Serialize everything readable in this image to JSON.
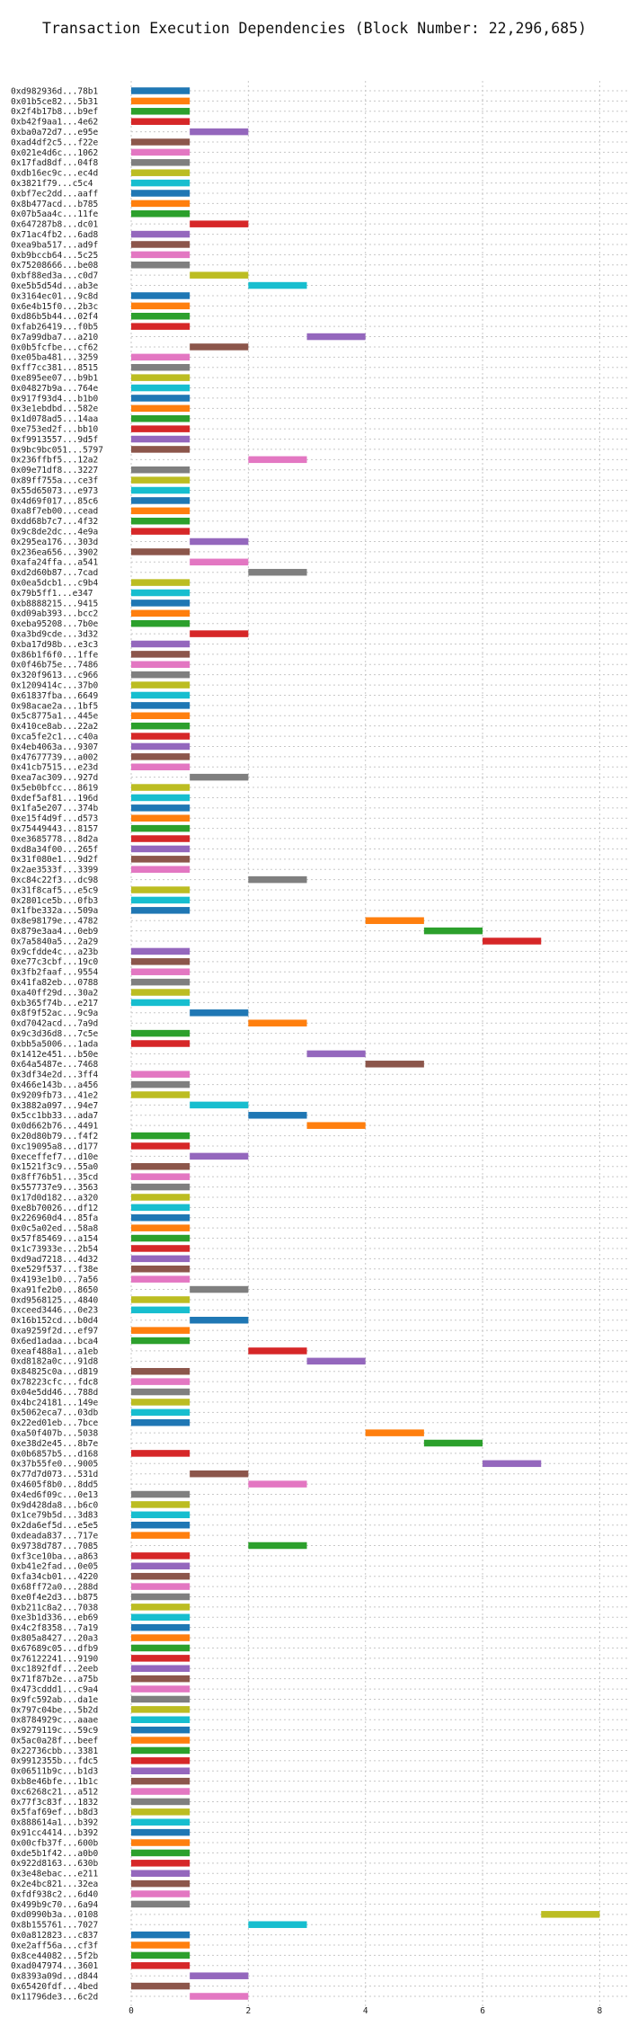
{
  "chart_data": {
    "type": "bar",
    "title": "Transaction Execution Dependencies (Block Number: 22,296,685)",
    "xlabel": "",
    "ylabel": "",
    "xlim": [
      0,
      8.5
    ],
    "xticks": [
      0,
      2,
      4,
      6,
      8
    ],
    "grid": true,
    "palette": [
      "#1f77b4",
      "#ff7f0e",
      "#2ca02c",
      "#d62728",
      "#9467bd",
      "#8c564b",
      "#e377c2",
      "#7f7f7f",
      "#bcbd22",
      "#17becf"
    ],
    "rows": [
      {
        "tx": "0xd982936d...78b1",
        "start": 0,
        "end": 1
      },
      {
        "tx": "0x01b5ce82...5b31",
        "start": 0,
        "end": 1
      },
      {
        "tx": "0x2f4b17b8...b9ef",
        "start": 0,
        "end": 1
      },
      {
        "tx": "0xb42f9aa1...4e62",
        "start": 0,
        "end": 1
      },
      {
        "tx": "0xba0a72d7...e95e",
        "start": 1,
        "end": 2
      },
      {
        "tx": "0xad4df2c5...f22e",
        "start": 0,
        "end": 1
      },
      {
        "tx": "0x021e4d6c...1062",
        "start": 0,
        "end": 1
      },
      {
        "tx": "0x17fad8df...04f8",
        "start": 0,
        "end": 1
      },
      {
        "tx": "0xdb16ec9c...ec4d",
        "start": 0,
        "end": 1
      },
      {
        "tx": "0x3821f79...c5c4",
        "start": 0,
        "end": 1
      },
      {
        "tx": "0xbf7ec2dd...aaff",
        "start": 0,
        "end": 1
      },
      {
        "tx": "0x8b477acd...b785",
        "start": 0,
        "end": 1
      },
      {
        "tx": "0x07b5aa4c...11fe",
        "start": 0,
        "end": 1
      },
      {
        "tx": "0x647287b8...dc01",
        "start": 1,
        "end": 2
      },
      {
        "tx": "0x71ac4fb2...6ad8",
        "start": 0,
        "end": 1
      },
      {
        "tx": "0xea9ba517...ad9f",
        "start": 0,
        "end": 1
      },
      {
        "tx": "0xb9bccb64...5c25",
        "start": 0,
        "end": 1
      },
      {
        "tx": "0x75208666...be08",
        "start": 0,
        "end": 1
      },
      {
        "tx": "0xbf88ed3a...c0d7",
        "start": 1,
        "end": 2
      },
      {
        "tx": "0xe5b5d54d...ab3e",
        "start": 2,
        "end": 3
      },
      {
        "tx": "0x3164ec01...9c8d",
        "start": 0,
        "end": 1
      },
      {
        "tx": "0x6e4b15f0...2b3c",
        "start": 0,
        "end": 1
      },
      {
        "tx": "0xd86b5b44...02f4",
        "start": 0,
        "end": 1
      },
      {
        "tx": "0xfab26419...f0b5",
        "start": 0,
        "end": 1
      },
      {
        "tx": "0x7a99dba7...a210",
        "start": 3,
        "end": 4
      },
      {
        "tx": "0x0b5fcfbe...cf62",
        "start": 1,
        "end": 2
      },
      {
        "tx": "0xe05ba481...3259",
        "start": 0,
        "end": 1
      },
      {
        "tx": "0xff7cc381...8515",
        "start": 0,
        "end": 1
      },
      {
        "tx": "0xe895ee07...b9b1",
        "start": 0,
        "end": 1
      },
      {
        "tx": "0x04827b9a...764e",
        "start": 0,
        "end": 1
      },
      {
        "tx": "0x917f93d4...b1b0",
        "start": 0,
        "end": 1
      },
      {
        "tx": "0x3e1ebdbd...582e",
        "start": 0,
        "end": 1
      },
      {
        "tx": "0x1d078ad5...14aa",
        "start": 0,
        "end": 1
      },
      {
        "tx": "0xe753ed2f...bb10",
        "start": 0,
        "end": 1
      },
      {
        "tx": "0xf9913557...9d5f",
        "start": 0,
        "end": 1
      },
      {
        "tx": "0x9bc9bc051...5797",
        "start": 0,
        "end": 1
      },
      {
        "tx": "0x236ffbf5...12a2",
        "start": 2,
        "end": 3
      },
      {
        "tx": "0x09e71df8...3227",
        "start": 0,
        "end": 1
      },
      {
        "tx": "0x89ff755a...ce3f",
        "start": 0,
        "end": 1
      },
      {
        "tx": "0x55d65073...e973",
        "start": 0,
        "end": 1
      },
      {
        "tx": "0x4d69f017...85c6",
        "start": 0,
        "end": 1
      },
      {
        "tx": "0xa8f7eb00...cead",
        "start": 0,
        "end": 1
      },
      {
        "tx": "0xdd68b7c7...4f32",
        "start": 0,
        "end": 1
      },
      {
        "tx": "0x9c8de2dc...4e9a",
        "start": 0,
        "end": 1
      },
      {
        "tx": "0x295ea176...303d",
        "start": 1,
        "end": 2
      },
      {
        "tx": "0x236ea656...3902",
        "start": 0,
        "end": 1
      },
      {
        "tx": "0xafa24ffa...a541",
        "start": 1,
        "end": 2
      },
      {
        "tx": "0xd2d60b87...7cad",
        "start": 2,
        "end": 3
      },
      {
        "tx": "0x0ea5dcb1...c9b4",
        "start": 0,
        "end": 1
      },
      {
        "tx": "0x79b5ff1...e347",
        "start": 0,
        "end": 1
      },
      {
        "tx": "0xb8888215...9415",
        "start": 0,
        "end": 1
      },
      {
        "tx": "0xd09ab393...bcc2",
        "start": 0,
        "end": 1
      },
      {
        "tx": "0xeba95208...7b0e",
        "start": 0,
        "end": 1
      },
      {
        "tx": "0xa3bd9cde...3d32",
        "start": 1,
        "end": 2
      },
      {
        "tx": "0xba17d98b...e3c3",
        "start": 0,
        "end": 1
      },
      {
        "tx": "0x86b1f6f0...1ffe",
        "start": 0,
        "end": 1
      },
      {
        "tx": "0x0f46b75e...7486",
        "start": 0,
        "end": 1
      },
      {
        "tx": "0x320f9613...c966",
        "start": 0,
        "end": 1
      },
      {
        "tx": "0x1209414c...37b0",
        "start": 0,
        "end": 1
      },
      {
        "tx": "0x61837fba...6649",
        "start": 0,
        "end": 1
      },
      {
        "tx": "0x98acae2a...1bf5",
        "start": 0,
        "end": 1
      },
      {
        "tx": "0x5c8775a1...445e",
        "start": 0,
        "end": 1
      },
      {
        "tx": "0x410ce8ab...22a2",
        "start": 0,
        "end": 1
      },
      {
        "tx": "0xca5fe2c1...c40a",
        "start": 0,
        "end": 1
      },
      {
        "tx": "0x4eb4063a...9307",
        "start": 0,
        "end": 1
      },
      {
        "tx": "0x47677739...a002",
        "start": 0,
        "end": 1
      },
      {
        "tx": "0x41cb7515...e23d",
        "start": 0,
        "end": 1
      },
      {
        "tx": "0xea7ac309...927d",
        "start": 1,
        "end": 2
      },
      {
        "tx": "0x5eb0bfcc...8619",
        "start": 0,
        "end": 1
      },
      {
        "tx": "0xdef5af81...196d",
        "start": 0,
        "end": 1
      },
      {
        "tx": "0x1fa5e207...374b",
        "start": 0,
        "end": 1
      },
      {
        "tx": "0xe15f4d9f...d573",
        "start": 0,
        "end": 1
      },
      {
        "tx": "0x75449443...8157",
        "start": 0,
        "end": 1
      },
      {
        "tx": "0xe3685778...8d2a",
        "start": 0,
        "end": 1
      },
      {
        "tx": "0xd8a34f00...265f",
        "start": 0,
        "end": 1
      },
      {
        "tx": "0x31f080e1...9d2f",
        "start": 0,
        "end": 1
      },
      {
        "tx": "0x2ae3533f...3399",
        "start": 0,
        "end": 1
      },
      {
        "tx": "0xc84c22f3...dc98",
        "start": 2,
        "end": 3
      },
      {
        "tx": "0x31f8caf5...e5c9",
        "start": 0,
        "end": 1
      },
      {
        "tx": "0x2801ce5b...0fb3",
        "start": 0,
        "end": 1
      },
      {
        "tx": "0x1fbe332a...509a",
        "start": 0,
        "end": 1
      },
      {
        "tx": "0x8e98179e...4782",
        "start": 4,
        "end": 5
      },
      {
        "tx": "0x879e3aa4...0eb9",
        "start": 5,
        "end": 6
      },
      {
        "tx": "0x7a5840a5...2a29",
        "start": 6,
        "end": 7
      },
      {
        "tx": "0x9cfdde4c...a23b",
        "start": 0,
        "end": 1
      },
      {
        "tx": "0xe77c3cbf...19c0",
        "start": 0,
        "end": 1
      },
      {
        "tx": "0x3fb2faaf...9554",
        "start": 0,
        "end": 1
      },
      {
        "tx": "0x41fa82eb...0788",
        "start": 0,
        "end": 1
      },
      {
        "tx": "0xa40ff29d...30a2",
        "start": 0,
        "end": 1
      },
      {
        "tx": "0xb365f74b...e217",
        "start": 0,
        "end": 1
      },
      {
        "tx": "0x8f9f52ac...9c9a",
        "start": 1,
        "end": 2
      },
      {
        "tx": "0xd7042acd...7a9d",
        "start": 2,
        "end": 3
      },
      {
        "tx": "0x9c3d36d8...7c5e",
        "start": 0,
        "end": 1
      },
      {
        "tx": "0xbb5a5006...1ada",
        "start": 0,
        "end": 1
      },
      {
        "tx": "0x1412e451...b50e",
        "start": 3,
        "end": 4
      },
      {
        "tx": "0x64a5487e...7468",
        "start": 4,
        "end": 5
      },
      {
        "tx": "0x3df34e2d...3ff4",
        "start": 0,
        "end": 1
      },
      {
        "tx": "0x466e143b...a456",
        "start": 0,
        "end": 1
      },
      {
        "tx": "0x9209fb73...41e2",
        "start": 0,
        "end": 1
      },
      {
        "tx": "0x3882a097...94e7",
        "start": 1,
        "end": 2
      },
      {
        "tx": "0x5cc1bb33...ada7",
        "start": 2,
        "end": 3
      },
      {
        "tx": "0x0d662b76...4491",
        "start": 3,
        "end": 4
      },
      {
        "tx": "0x20d80b79...f4f2",
        "start": 0,
        "end": 1
      },
      {
        "tx": "0xc19095a8...d177",
        "start": 0,
        "end": 1
      },
      {
        "tx": "0xeceffef7...d10e",
        "start": 1,
        "end": 2
      },
      {
        "tx": "0x1521f3c9...55a0",
        "start": 0,
        "end": 1
      },
      {
        "tx": "0x8ff76b51...35cd",
        "start": 0,
        "end": 1
      },
      {
        "tx": "0x557737e9...3563",
        "start": 0,
        "end": 1
      },
      {
        "tx": "0x17d0d182...a320",
        "start": 0,
        "end": 1
      },
      {
        "tx": "0xe8b70026...df12",
        "start": 0,
        "end": 1
      },
      {
        "tx": "0x226960d4...85fa",
        "start": 0,
        "end": 1
      },
      {
        "tx": "0x0c5a02ed...58a8",
        "start": 0,
        "end": 1
      },
      {
        "tx": "0x57f85469...a154",
        "start": 0,
        "end": 1
      },
      {
        "tx": "0x1c73933e...2b54",
        "start": 0,
        "end": 1
      },
      {
        "tx": "0xd9ad7218...4d32",
        "start": 0,
        "end": 1
      },
      {
        "tx": "0xe529f537...f38e",
        "start": 0,
        "end": 1
      },
      {
        "tx": "0x4193e1b0...7a56",
        "start": 0,
        "end": 1
      },
      {
        "tx": "0xa91fe2b0...8650",
        "start": 1,
        "end": 2
      },
      {
        "tx": "0xd9568125...4840",
        "start": 0,
        "end": 1
      },
      {
        "tx": "0xceed3446...0e23",
        "start": 0,
        "end": 1
      },
      {
        "tx": "0x16b152cd...b0d4",
        "start": 1,
        "end": 2
      },
      {
        "tx": "0xa9259f2d...ef97",
        "start": 0,
        "end": 1
      },
      {
        "tx": "0x6ed1adaa...bca4",
        "start": 0,
        "end": 1
      },
      {
        "tx": "0xeaf488a1...a1eb",
        "start": 2,
        "end": 3
      },
      {
        "tx": "0xd8182a0c...91d8",
        "start": 3,
        "end": 4
      },
      {
        "tx": "0x84825c0a...d819",
        "start": 0,
        "end": 1
      },
      {
        "tx": "0x78223cfc...fdc8",
        "start": 0,
        "end": 1
      },
      {
        "tx": "0x04e5dd46...788d",
        "start": 0,
        "end": 1
      },
      {
        "tx": "0x4bc24181...149e",
        "start": 0,
        "end": 1
      },
      {
        "tx": "0x5062eca7...03db",
        "start": 0,
        "end": 1
      },
      {
        "tx": "0x22ed01eb...7bce",
        "start": 0,
        "end": 1
      },
      {
        "tx": "0xa50f407b...5038",
        "start": 4,
        "end": 5
      },
      {
        "tx": "0xe38d2e45...8b7e",
        "start": 5,
        "end": 6
      },
      {
        "tx": "0x0b6857b5...d168",
        "start": 0,
        "end": 1
      },
      {
        "tx": "0x37b55fe0...9005",
        "start": 6,
        "end": 7
      },
      {
        "tx": "0x77d7d073...531d",
        "start": 1,
        "end": 2
      },
      {
        "tx": "0x4605f8b0...8dd5",
        "start": 2,
        "end": 3
      },
      {
        "tx": "0x4ed6f09c...0e13",
        "start": 0,
        "end": 1
      },
      {
        "tx": "0x9d428da8...b6c0",
        "start": 0,
        "end": 1
      },
      {
        "tx": "0x1ce79b5d...3d83",
        "start": 0,
        "end": 1
      },
      {
        "tx": "0x2da6ef5d...e5e5",
        "start": 0,
        "end": 1
      },
      {
        "tx": "0xdeada837...717e",
        "start": 0,
        "end": 1
      },
      {
        "tx": "0x9738d787...7085",
        "start": 2,
        "end": 3
      },
      {
        "tx": "0xf3ce10ba...a863",
        "start": 0,
        "end": 1
      },
      {
        "tx": "0xb41e2fad...0e05",
        "start": 0,
        "end": 1
      },
      {
        "tx": "0xfa34cb01...4220",
        "start": 0,
        "end": 1
      },
      {
        "tx": "0x68ff72a0...288d",
        "start": 0,
        "end": 1
      },
      {
        "tx": "0xe0f4e2d3...b875",
        "start": 0,
        "end": 1
      },
      {
        "tx": "0xb211c8a2...7038",
        "start": 0,
        "end": 1
      },
      {
        "tx": "0xe3b1d336...eb69",
        "start": 0,
        "end": 1
      },
      {
        "tx": "0x4c2f8358...7a19",
        "start": 0,
        "end": 1
      },
      {
        "tx": "0x805a8427...20a3",
        "start": 0,
        "end": 1
      },
      {
        "tx": "0x67689c05...dfb9",
        "start": 0,
        "end": 1
      },
      {
        "tx": "0x76122241...9190",
        "start": 0,
        "end": 1
      },
      {
        "tx": "0xc1892fdf...2eeb",
        "start": 0,
        "end": 1
      },
      {
        "tx": "0x71f87b2e...a75b",
        "start": 0,
        "end": 1
      },
      {
        "tx": "0x473cddd1...c9a4",
        "start": 0,
        "end": 1
      },
      {
        "tx": "0x9fc592ab...da1e",
        "start": 0,
        "end": 1
      },
      {
        "tx": "0x797c04be...5b2d",
        "start": 0,
        "end": 1
      },
      {
        "tx": "0x8784929c...aaae",
        "start": 0,
        "end": 1
      },
      {
        "tx": "0x9279119c...59c9",
        "start": 0,
        "end": 1
      },
      {
        "tx": "0x5ac0a28f...beef",
        "start": 0,
        "end": 1
      },
      {
        "tx": "0x22736cbb...3381",
        "start": 0,
        "end": 1
      },
      {
        "tx": "0x9912355b...fdc5",
        "start": 0,
        "end": 1
      },
      {
        "tx": "0x06511b9c...b1d3",
        "start": 0,
        "end": 1
      },
      {
        "tx": "0xb8e46bfe...1b1c",
        "start": 0,
        "end": 1
      },
      {
        "tx": "0xc6268c21...a512",
        "start": 0,
        "end": 1
      },
      {
        "tx": "0x77f3c83f...1832",
        "start": 0,
        "end": 1
      },
      {
        "tx": "0x5faf69ef...b8d3",
        "start": 0,
        "end": 1
      },
      {
        "tx": "0x888614a1...b392",
        "start": 0,
        "end": 1
      },
      {
        "tx": "0x91cc4414...b392",
        "start": 0,
        "end": 1
      },
      {
        "tx": "0x00cfb37f...600b",
        "start": 0,
        "end": 1
      },
      {
        "tx": "0xde5b1f42...a0b0",
        "start": 0,
        "end": 1
      },
      {
        "tx": "0x922d8163...630b",
        "start": 0,
        "end": 1
      },
      {
        "tx": "0x3e48ebac...e211",
        "start": 0,
        "end": 1
      },
      {
        "tx": "0x2e4bc821...32ea",
        "start": 0,
        "end": 1
      },
      {
        "tx": "0xfdf938c2...6d40",
        "start": 0,
        "end": 1
      },
      {
        "tx": "0x499b9c70...6a94",
        "start": 0,
        "end": 1
      },
      {
        "tx": "0xd0990b3a...0108",
        "start": 7,
        "end": 8
      },
      {
        "tx": "0x8b155761...7027",
        "start": 2,
        "end": 3
      },
      {
        "tx": "0x0a812823...c837",
        "start": 0,
        "end": 1
      },
      {
        "tx": "0xe2aff56a...cf3f",
        "start": 0,
        "end": 1
      },
      {
        "tx": "0x8ce44082...5f2b",
        "start": 0,
        "end": 1
      },
      {
        "tx": "0xad047974...3601",
        "start": 0,
        "end": 1
      },
      {
        "tx": "0x8393a09d...d844",
        "start": 1,
        "end": 2
      },
      {
        "tx": "0x65420fdf...4bed",
        "start": 0,
        "end": 1
      },
      {
        "tx": "0x11796de3...6c2d",
        "start": 1,
        "end": 2
      }
    ]
  }
}
